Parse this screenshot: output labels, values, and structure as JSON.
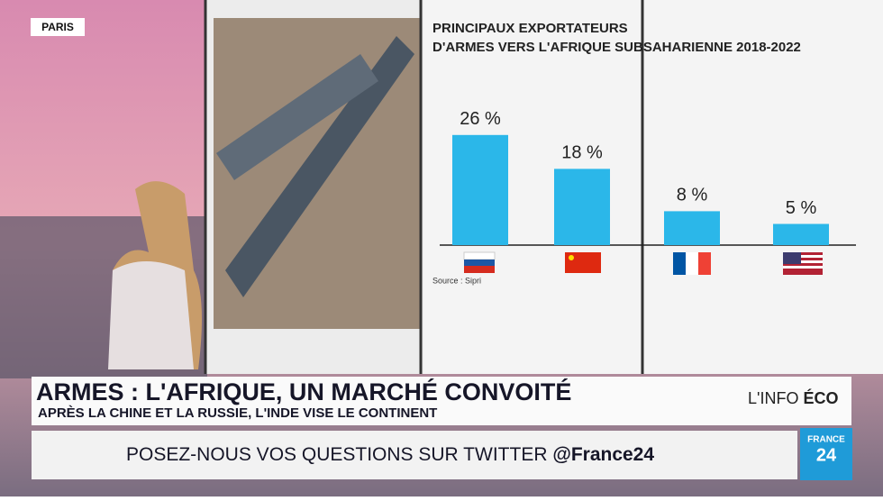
{
  "location": "PARIS",
  "chart_data": {
    "type": "bar",
    "title": "PRINCIPAUX EXPORTATEURS D'ARMES VERS L'AFRIQUE SUBSAHARIENNE 2018-2022",
    "categories": [
      null,
      null,
      null,
      null
    ],
    "values": [
      26,
      18,
      8,
      5
    ],
    "value_labels": [
      "26 %",
      "18 %",
      "8 %",
      "5 %"
    ],
    "color": "#2bb7e9",
    "source": "Source : Sipri"
  },
  "lower_third": {
    "headline": "ARMES : L'AFRIQUE, UN MARCHÉ CONVOITÉ",
    "subheadline": "APRÈS LA CHINE ET LA RUSSIE, L'INDE VISE LE CONTINENT",
    "show": "L'INFO",
    "show_bold": "ÉCO"
  },
  "ticker": {
    "text": "POSEZ-NOUS VOS QUESTIONS SUR TWITTER",
    "handle": "@France24"
  },
  "logo": {
    "line1": "FRANCE",
    "line2": "24"
  }
}
